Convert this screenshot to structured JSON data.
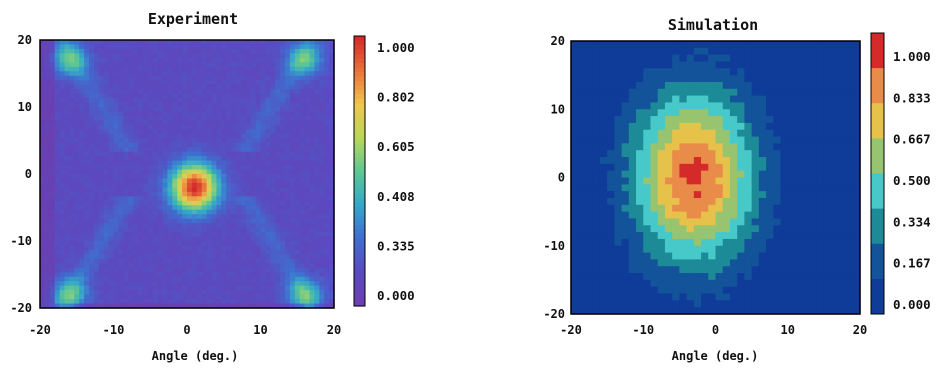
{
  "chart_data": [
    {
      "type": "heatmap",
      "title": "Experiment",
      "xlabel": "Angle (deg.)",
      "ylabel": "",
      "xlim": [
        -20,
        20
      ],
      "ylim": [
        -20,
        20
      ],
      "x_ticks": [
        "-20",
        "-10",
        "0",
        "10",
        "20"
      ],
      "y_ticks": [
        "20",
        "10",
        "0",
        "-10",
        "-20"
      ],
      "colorbar_ticks": [
        "1.000",
        "0.802",
        "0.605",
        "0.408",
        "0.335",
        "0.000"
      ],
      "colormap": "continuous rainbow (purple to red)",
      "features": {
        "background": 0.12,
        "central_peak": {
          "x": 1,
          "y": -2,
          "value": 1.0
        },
        "corner_lobes": [
          {
            "x": -16,
            "y": 17,
            "value": 0.45
          },
          {
            "x": 16,
            "y": 17,
            "value": 0.45
          },
          {
            "x": -16,
            "y": -18,
            "value": 0.45
          },
          {
            "x": 16,
            "y": -18,
            "value": 0.45
          }
        ],
        "diagonal_streaks": true
      }
    },
    {
      "type": "heatmap",
      "title": "Simulation",
      "xlabel": "Angle (deg.)",
      "ylabel": "",
      "xlim": [
        -20,
        20
      ],
      "ylim": [
        -20,
        20
      ],
      "x_ticks": [
        "-20",
        "-10",
        "0",
        "10",
        "20"
      ],
      "y_ticks": [
        "20",
        "10",
        "0",
        "-10",
        "-20"
      ],
      "colorbar_ticks": [
        "1.000",
        "0.833",
        "0.667",
        "0.500",
        "0.334",
        "0.167",
        "0.000"
      ],
      "colormap": "discrete 7 levels (navy to red)",
      "features": {
        "peak": {
          "x": -3,
          "y": 0,
          "value": 1.0
        },
        "spread_x_deg": 6,
        "spread_y_deg": 9
      }
    }
  ],
  "colors": {
    "expLevels": [
      "#6a3fb0",
      "#5a4bc0",
      "#3f6fd0",
      "#35a8c8",
      "#5fc792",
      "#b9d75a",
      "#f0c64f",
      "#e8743d",
      "#d42a2a"
    ],
    "simLevels": [
      "#0f3b99",
      "#13539a",
      "#1c8b97",
      "#47c8c9",
      "#98c470",
      "#e7c24b",
      "#e98c49",
      "#d42a2a"
    ],
    "frame": "#000000"
  }
}
